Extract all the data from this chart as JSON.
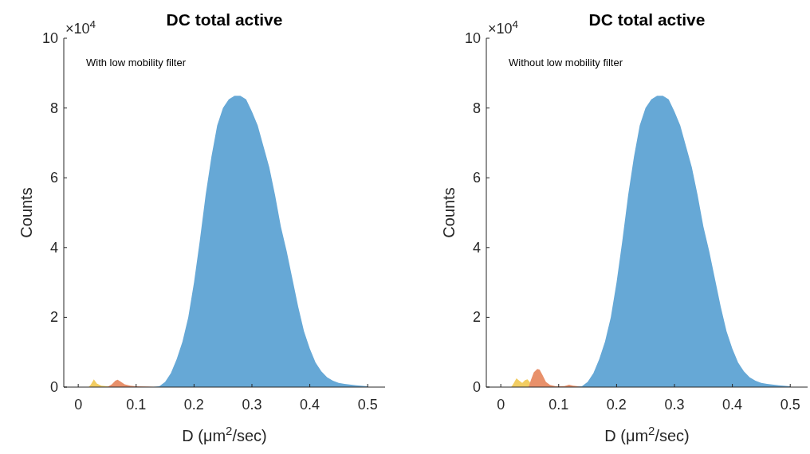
{
  "chart_data": [
    {
      "type": "area",
      "title": "DC total active",
      "xlabel": "D (μm$^{2}$/sec)",
      "ylabel": "Counts",
      "annotations": [
        "×10$^{4}$",
        "With low mobility filter"
      ],
      "xlim": [
        -0.025,
        0.53
      ],
      "xticks": [
        0,
        0.1,
        0.2,
        0.3,
        0.4,
        0.5
      ],
      "ylim": [
        0,
        10
      ],
      "yticks": [
        0,
        2,
        4,
        6,
        8,
        10
      ],
      "grid": false,
      "series": [
        {
          "color": "#f2cd62",
          "x": [
            0.018,
            0.022,
            0.027,
            0.032,
            0.04,
            0.05,
            0.055
          ],
          "values": [
            0,
            0.08,
            0.22,
            0.1,
            0.04,
            0.02,
            0
          ]
        },
        {
          "color": "#e8906a",
          "x": [
            0.05,
            0.058,
            0.064,
            0.068,
            0.073,
            0.08,
            0.09,
            0.1,
            0.12,
            0.135
          ],
          "values": [
            0,
            0.08,
            0.18,
            0.21,
            0.16,
            0.08,
            0.04,
            0.02,
            0.01,
            0
          ]
        },
        {
          "color": "#66a8d6",
          "x": [
            0.13,
            0.14,
            0.15,
            0.16,
            0.17,
            0.18,
            0.19,
            0.2,
            0.21,
            0.22,
            0.23,
            0.24,
            0.25,
            0.26,
            0.27,
            0.28,
            0.29,
            0.3,
            0.31,
            0.32,
            0.33,
            0.34,
            0.35,
            0.36,
            0.37,
            0.38,
            0.39,
            0.4,
            0.41,
            0.42,
            0.43,
            0.44,
            0.45,
            0.46,
            0.48,
            0.5
          ],
          "values": [
            0,
            0.02,
            0.15,
            0.4,
            0.8,
            1.3,
            2.0,
            3.0,
            4.2,
            5.5,
            6.6,
            7.5,
            8.0,
            8.25,
            8.35,
            8.35,
            8.25,
            7.9,
            7.5,
            6.9,
            6.3,
            5.5,
            4.6,
            3.9,
            3.1,
            2.3,
            1.6,
            1.1,
            0.7,
            0.45,
            0.28,
            0.18,
            0.12,
            0.09,
            0.05,
            0.02
          ]
        }
      ]
    },
    {
      "type": "area",
      "title": "DC total active",
      "xlabel": "D (μm$^{2}$/sec)",
      "ylabel": "Counts",
      "annotations": [
        "×10$^{4}$",
        "Without low mobility filter"
      ],
      "xlim": [
        -0.025,
        0.53
      ],
      "xticks": [
        0,
        0.1,
        0.2,
        0.3,
        0.4,
        0.5
      ],
      "ylim": [
        0,
        10
      ],
      "yticks": [
        0,
        2,
        4,
        6,
        8,
        10
      ],
      "grid": false,
      "series": [
        {
          "color": "#f2cd62",
          "x": [
            0.018,
            0.022,
            0.027,
            0.032,
            0.037,
            0.042,
            0.046,
            0.05,
            0.055
          ],
          "values": [
            0,
            0.1,
            0.25,
            0.18,
            0.12,
            0.2,
            0.22,
            0.15,
            0
          ]
        },
        {
          "color": "#e8906a",
          "x": [
            0.048,
            0.052,
            0.057,
            0.063,
            0.067,
            0.072,
            0.078,
            0.085,
            0.095,
            0.11,
            0.118,
            0.125,
            0.14,
            0.15
          ],
          "values": [
            0,
            0.2,
            0.42,
            0.52,
            0.5,
            0.35,
            0.15,
            0.06,
            0.02,
            0.03,
            0.07,
            0.04,
            0.01,
            0
          ]
        },
        {
          "color": "#66a8d6",
          "x": [
            0.13,
            0.14,
            0.15,
            0.16,
            0.17,
            0.18,
            0.19,
            0.2,
            0.21,
            0.22,
            0.23,
            0.24,
            0.25,
            0.26,
            0.27,
            0.28,
            0.29,
            0.3,
            0.31,
            0.32,
            0.33,
            0.34,
            0.35,
            0.36,
            0.37,
            0.38,
            0.39,
            0.4,
            0.41,
            0.42,
            0.43,
            0.44,
            0.45,
            0.46,
            0.48,
            0.5
          ],
          "values": [
            0,
            0.02,
            0.15,
            0.4,
            0.8,
            1.3,
            2.0,
            3.0,
            4.2,
            5.5,
            6.6,
            7.5,
            8.0,
            8.25,
            8.35,
            8.35,
            8.25,
            7.9,
            7.5,
            6.9,
            6.3,
            5.5,
            4.6,
            3.9,
            3.1,
            2.3,
            1.6,
            1.1,
            0.7,
            0.45,
            0.28,
            0.18,
            0.12,
            0.09,
            0.05,
            0.02
          ]
        }
      ]
    }
  ]
}
